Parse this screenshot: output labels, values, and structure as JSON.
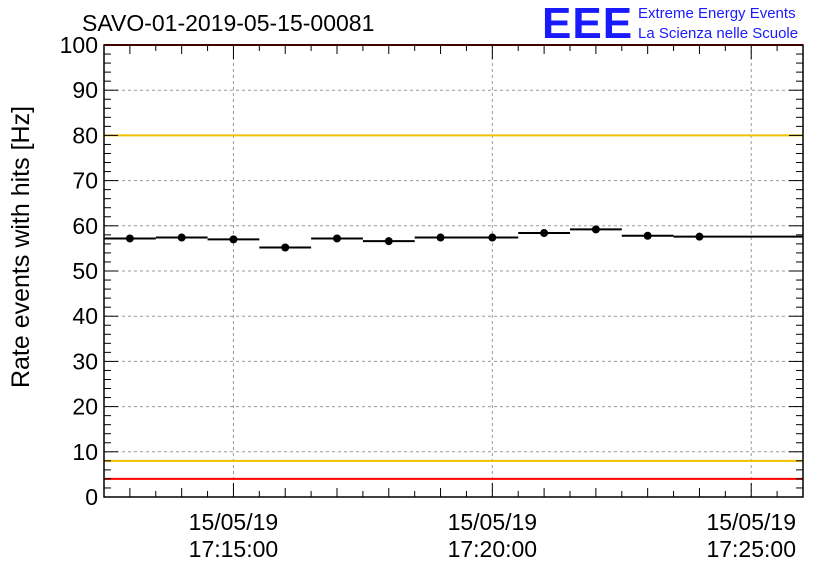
{
  "title": "SAVO-01-2019-05-15-00081",
  "logo": {
    "mark": "EEE",
    "line1": "Extreme Energy Events",
    "line2": "La Scienza nelle Scuole",
    "color": "#1a1aff"
  },
  "chart_data": {
    "type": "scatter",
    "title": "SAVO-01-2019-05-15-00081",
    "ylabel": "Rate events with hits [Hz]",
    "xlabel": "",
    "ylim": [
      0,
      100
    ],
    "xlim": [
      "2019-05-15 17:12:30",
      "2019-05-15 17:26:00"
    ],
    "yticks": [
      0,
      10,
      20,
      30,
      40,
      50,
      60,
      70,
      80,
      90,
      100
    ],
    "xticks": [
      {
        "value": "2019-05-15 17:15:00",
        "date": "15/05/19",
        "time": "17:15:00"
      },
      {
        "value": "2019-05-15 17:20:00",
        "date": "15/05/19",
        "time": "17:20:00"
      },
      {
        "value": "2019-05-15 17:25:00",
        "date": "15/05/19",
        "time": "17:25:00"
      }
    ],
    "grid": true,
    "series": [
      {
        "marker": "circle",
        "color": "#000000",
        "points": [
          {
            "x_start": "2019-05-15 17:12:30",
            "x_end": "2019-05-15 17:13:30",
            "y": 57.2
          },
          {
            "x_start": "2019-05-15 17:13:30",
            "x_end": "2019-05-15 17:14:30",
            "y": 57.4
          },
          {
            "x_start": "2019-05-15 17:14:30",
            "x_end": "2019-05-15 17:15:30",
            "y": 57.0
          },
          {
            "x_start": "2019-05-15 17:15:30",
            "x_end": "2019-05-15 17:16:30",
            "y": 55.2
          },
          {
            "x_start": "2019-05-15 17:16:30",
            "x_end": "2019-05-15 17:17:30",
            "y": 57.2
          },
          {
            "x_start": "2019-05-15 17:17:30",
            "x_end": "2019-05-15 17:18:30",
            "y": 56.6
          },
          {
            "x_start": "2019-05-15 17:18:30",
            "x_end": "2019-05-15 17:19:30",
            "y": 57.4
          },
          {
            "x_start": "2019-05-15 17:19:30",
            "x_end": "2019-05-15 17:20:30",
            "y": 57.4
          },
          {
            "x_start": "2019-05-15 17:20:30",
            "x_end": "2019-05-15 17:21:30",
            "y": 58.4
          },
          {
            "x_start": "2019-05-15 17:21:30",
            "x_end": "2019-05-15 17:22:30",
            "y": 59.2
          },
          {
            "x_start": "2019-05-15 17:22:30",
            "x_end": "2019-05-15 17:23:30",
            "y": 57.8
          },
          {
            "x_start": "2019-05-15 17:23:30",
            "x_end": "2019-05-15 17:26:00",
            "y": 57.6
          }
        ]
      }
    ],
    "reference_lines": [
      {
        "y": 100,
        "color": "#ff0000"
      },
      {
        "y": 80,
        "color": "#f0c000"
      },
      {
        "y": 8,
        "color": "#f0c000"
      },
      {
        "y": 4,
        "color": "#ff0000"
      }
    ]
  }
}
